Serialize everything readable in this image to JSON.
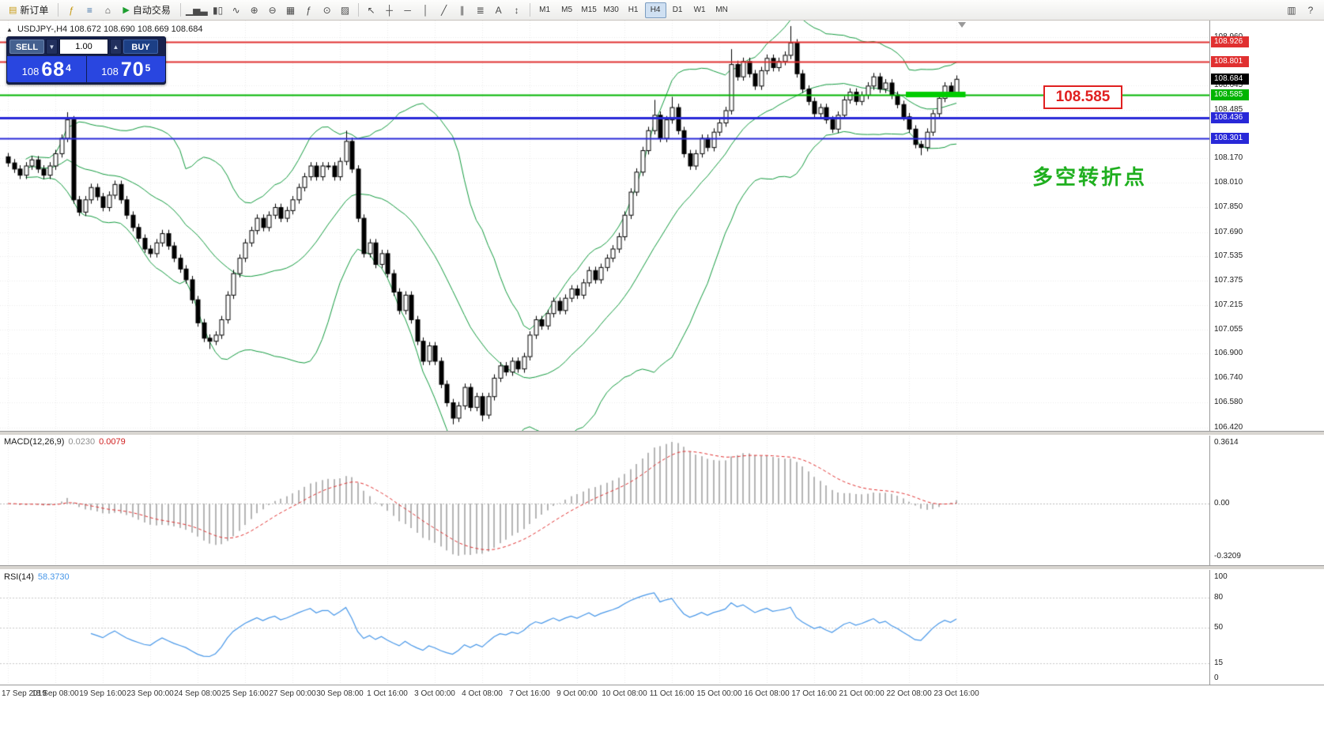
{
  "toolbar": {
    "new_order": {
      "label": "新订单",
      "icon": "new-order-icon"
    },
    "app_icons": [
      "metaeditor-icon",
      "market-watch-icon",
      "navigator-icon"
    ],
    "autotrading": {
      "label": "自动交易",
      "icon": "autotrading-play-icon"
    },
    "chart_icons": [
      "bar-chart-icon",
      "candlestick-chart-icon",
      "line-chart-icon",
      "zoom-in-icon",
      "zoom-out-icon",
      "tile-windows-icon",
      "indicators-icon",
      "period-icon",
      "template-icon"
    ],
    "tool_icons": [
      "cursor-icon",
      "crosshair-icon",
      "horizontal-line-icon",
      "vertical-line-icon",
      "trendline-icon",
      "channel-icon",
      "fibonacci-icon",
      "text-label-icon",
      "arrow-icon"
    ],
    "timeframes": [
      "M1",
      "M5",
      "M15",
      "M30",
      "H1",
      "H4",
      "D1",
      "W1",
      "MN"
    ],
    "active_timeframe": "H4",
    "right_icons": [
      "print-preview-icon",
      "help-icon"
    ]
  },
  "chart": {
    "toggle_glyph": "▲",
    "symbol_period": "USDJPY-,H4",
    "ohlc": "108.672 108.690 108.669 108.684"
  },
  "one_click": {
    "sell_label": "SELL",
    "buy_label": "BUY",
    "lot": "1.00",
    "lot_down_glyph": "▼",
    "lot_up_glyph": "▲",
    "sell_prefix": "108",
    "sell_main": "68",
    "sell_sup": "4",
    "buy_prefix": "108",
    "buy_main": "70",
    "buy_sup": "5"
  },
  "annotations": {
    "level_box_text": "108.585",
    "pivot_text": "多空转折点"
  },
  "macd_panel": {
    "name_label": "MACD(12,26,9)",
    "value_main": "0.0230",
    "value_signal": "0.0079"
  },
  "rsi_panel": {
    "name_label": "RSI(14)",
    "value": "58.3730"
  },
  "price_axis": {
    "grid_prices": [
      108.96,
      108.645,
      108.485,
      108.17,
      108.01,
      107.85,
      107.69,
      107.535,
      107.375,
      107.215,
      107.055,
      106.9,
      106.74,
      106.58,
      106.42
    ]
  },
  "time_axis": [
    {
      "idx": 0,
      "label": "17 Sep 2019"
    },
    {
      "idx": 8,
      "label": "18 Sep 08:00"
    },
    {
      "idx": 16,
      "label": "19 Sep 16:00"
    },
    {
      "idx": 24,
      "label": "23 Sep 00:00"
    },
    {
      "idx": 32,
      "label": "24 Sep 08:00"
    },
    {
      "idx": 40,
      "label": "25 Sep 16:00"
    },
    {
      "idx": 48,
      "label": "27 Sep 00:00"
    },
    {
      "idx": 56,
      "label": "30 Sep 08:00"
    },
    {
      "idx": 64,
      "label": "1 Oct 16:00"
    },
    {
      "idx": 72,
      "label": "3 Oct 00:00"
    },
    {
      "idx": 80,
      "label": "4 Oct 08:00"
    },
    {
      "idx": 88,
      "label": "7 Oct 16:00"
    },
    {
      "idx": 96,
      "label": "9 Oct 00:00"
    },
    {
      "idx": 104,
      "label": "10 Oct 08:00"
    },
    {
      "idx": 112,
      "label": "11 Oct 16:00"
    },
    {
      "idx": 120,
      "label": "15 Oct 00:00"
    },
    {
      "idx": 128,
      "label": "16 Oct 08:00"
    },
    {
      "idx": 136,
      "label": "17 Oct 16:00"
    },
    {
      "idx": 144,
      "label": "21 Oct 00:00"
    },
    {
      "idx": 152,
      "label": "22 Oct 08:00"
    },
    {
      "idx": 160,
      "label": "23 Oct 16:00"
    }
  ],
  "chart_data": {
    "type": "candlestick+indicators",
    "symbol": "USDJPY-",
    "timeframe": "H4",
    "bid": 108.684,
    "first_open": 108.18,
    "closes": [
      108.14,
      108.1,
      108.06,
      108.12,
      108.16,
      108.1,
      108.06,
      108.12,
      108.2,
      108.3,
      108.42,
      107.9,
      107.82,
      107.9,
      107.98,
      107.92,
      107.85,
      107.93,
      108.0,
      107.9,
      107.8,
      107.72,
      107.65,
      107.58,
      107.55,
      107.62,
      107.68,
      107.6,
      107.52,
      107.45,
      107.38,
      107.25,
      107.1,
      107.0,
      106.98,
      107.02,
      107.12,
      107.28,
      107.42,
      107.52,
      107.62,
      107.7,
      107.78,
      107.72,
      107.8,
      107.85,
      107.78,
      107.83,
      107.9,
      107.98,
      108.05,
      108.12,
      108.05,
      108.12,
      108.12,
      108.05,
      108.15,
      108.28,
      108.1,
      107.78,
      107.55,
      107.62,
      107.48,
      107.55,
      107.42,
      107.3,
      107.18,
      107.28,
      107.12,
      106.98,
      106.85,
      106.95,
      106.85,
      106.7,
      106.58,
      106.48,
      106.56,
      106.68,
      106.55,
      106.62,
      106.5,
      106.62,
      106.74,
      106.82,
      106.78,
      106.85,
      106.8,
      106.88,
      107.02,
      107.12,
      107.08,
      107.16,
      107.24,
      107.18,
      107.26,
      107.32,
      107.28,
      107.36,
      107.44,
      107.38,
      107.46,
      107.52,
      107.58,
      107.66,
      107.8,
      107.95,
      108.08,
      108.22,
      108.35,
      108.45,
      108.3,
      108.42,
      108.5,
      108.35,
      108.2,
      108.12,
      108.2,
      108.3,
      108.24,
      108.34,
      108.4,
      108.48,
      108.78,
      108.7,
      108.8,
      108.72,
      108.64,
      108.74,
      108.82,
      108.76,
      108.8,
      108.84,
      108.92,
      108.72,
      108.62,
      108.54,
      108.46,
      108.5,
      108.42,
      108.36,
      108.45,
      108.55,
      108.6,
      108.54,
      108.58,
      108.64,
      108.7,
      108.62,
      108.66,
      108.58,
      108.52,
      108.44,
      108.36,
      108.26,
      108.24,
      108.34,
      108.46,
      108.56,
      108.64,
      108.6,
      108.684
    ],
    "high_overrides": {
      "10": 108.47,
      "57": 108.35,
      "109": 108.55,
      "112": 108.57,
      "122": 108.88,
      "132": 109.03
    },
    "low_overrides": {
      "34": 106.93,
      "75": 106.44,
      "80": 106.46,
      "154": 108.19
    },
    "bollinger": {
      "period": 20,
      "deviation": 2,
      "color": "#129a3e"
    },
    "levels": [
      {
        "price": 108.926,
        "color": "#e03030",
        "line_width": 2
      },
      {
        "price": 108.801,
        "color": "#e03030",
        "line_width": 2
      },
      {
        "price": 108.585,
        "color": "#00b400",
        "line_width": 2
      },
      {
        "price": 108.436,
        "color": "#2828d8",
        "line_width": 3
      },
      {
        "price": 108.301,
        "color": "#2828d8",
        "line_width": 2
      }
    ],
    "green_segment": {
      "price": 108.585,
      "from_idx": 152,
      "to_idx": 161,
      "color": "#00cc00"
    },
    "macd": {
      "fast": 12,
      "slow": 26,
      "signal_period": 9,
      "current_macd": 0.023,
      "current_signal": 0.0079,
      "axis_max": 0.3614,
      "axis_min": -0.3209,
      "histogram_color": "#b4b4b4",
      "signal_color": "#e03030"
    },
    "rsi": {
      "period": 14,
      "current": 58.373,
      "color": "#4696e8",
      "levels": [
        80,
        50,
        15
      ],
      "axis_values": [
        100,
        80,
        50,
        15,
        0
      ]
    }
  }
}
